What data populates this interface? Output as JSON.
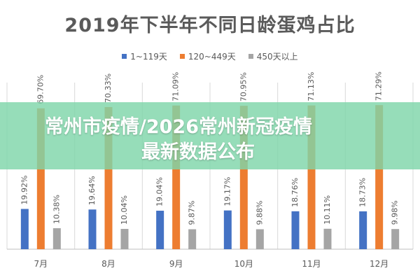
{
  "chart_data": {
    "type": "bar",
    "title": "2019年下半年不同日龄蛋鸡占比",
    "categories": [
      "7月",
      "8月",
      "9月",
      "10月",
      "11月",
      "12月"
    ],
    "series": [
      {
        "name": "1~119天",
        "color": "#4472c4",
        "values": [
          19.92,
          19.64,
          19.04,
          19.17,
          18.76,
          18.73
        ],
        "labels": [
          "19.92%",
          "19.64%",
          "19.04%",
          "19.17%",
          "18.76%",
          "18.73%"
        ]
      },
      {
        "name": "120~449天",
        "color": "#ed7d31",
        "values": [
          69.7,
          70.33,
          71.09,
          70.95,
          71.13,
          71.29
        ],
        "labels": [
          "69.70%",
          "70.33%",
          "71.09%",
          "70.95%",
          "71.13%",
          "71.29%"
        ]
      },
      {
        "name": "450天以上",
        "color": "#a5a5a5",
        "values": [
          10.38,
          10.04,
          9.87,
          9.88,
          10.11,
          9.98
        ],
        "labels": [
          "10.38%",
          "10.04%",
          "9.87%",
          "9.88%",
          "10.11%",
          "9.98%"
        ]
      }
    ],
    "ylim": [
      0,
      80
    ],
    "grid": "vertical",
    "legend": "top-center"
  },
  "overlay": {
    "line1": "常州市疫情/2026常州新冠疫情",
    "line2": "最新数据公布",
    "color": "#7fd6aa"
  }
}
